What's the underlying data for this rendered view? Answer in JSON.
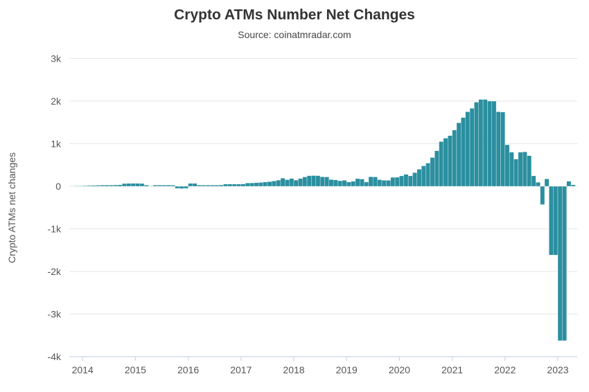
{
  "chart_data": {
    "type": "bar",
    "title": "Crypto ATMs Number Net Changes",
    "subtitle": "Source: coinatmradar.com",
    "ylabel": "Crypto ATMs net changes",
    "xlabel": "",
    "legend": "none",
    "grid": "horizontal",
    "ylim": [
      -4000,
      3000
    ],
    "yticks": [
      {
        "value": 3000,
        "label": "3k"
      },
      {
        "value": 2000,
        "label": "2k"
      },
      {
        "value": 1000,
        "label": "1k"
      },
      {
        "value": 0,
        "label": "0"
      },
      {
        "value": -1000,
        "label": "-1k"
      },
      {
        "value": -2000,
        "label": "-2k"
      },
      {
        "value": -3000,
        "label": "-3k"
      },
      {
        "value": -4000,
        "label": "-4k"
      }
    ],
    "xticks": [
      "2014",
      "2015",
      "2016",
      "2017",
      "2018",
      "2019",
      "2020",
      "2021",
      "2022",
      "2023"
    ],
    "start_month": "2013-11",
    "frequency": "monthly",
    "values": [
      5,
      10,
      15,
      18,
      22,
      25,
      28,
      30,
      30,
      32,
      35,
      65,
      68,
      70,
      68,
      65,
      30,
      5,
      28,
      30,
      30,
      30,
      28,
      -50,
      -55,
      -50,
      68,
      68,
      30,
      28,
      28,
      30,
      30,
      32,
      52,
      52,
      52,
      52,
      55,
      78,
      80,
      85,
      90,
      100,
      110,
      125,
      145,
      190,
      155,
      182,
      145,
      182,
      220,
      250,
      252,
      250,
      222,
      220,
      158,
      150,
      130,
      140,
      100,
      118,
      180,
      170,
      100,
      225,
      220,
      155,
      140,
      140,
      210,
      212,
      245,
      280,
      245,
      320,
      400,
      480,
      545,
      675,
      835,
      1050,
      1130,
      1190,
      1320,
      1490,
      1615,
      1750,
      1830,
      1975,
      2040,
      2040,
      2000,
      2000,
      1750,
      1745,
      975,
      800,
      640,
      800,
      810,
      720,
      245,
      95,
      -430,
      175,
      -1615,
      -1615,
      -3625,
      -3625,
      120,
      35
    ],
    "colors": {
      "bar": "#2b8f9f",
      "bar_border": "#ffffff",
      "gridline": "#e6e6e6",
      "axis_line": "#ccd6eb",
      "tick_label": "#555555",
      "title": "#333333",
      "subtitle": "#444444",
      "axis_title": "#555555",
      "background": "#ffffff"
    }
  }
}
